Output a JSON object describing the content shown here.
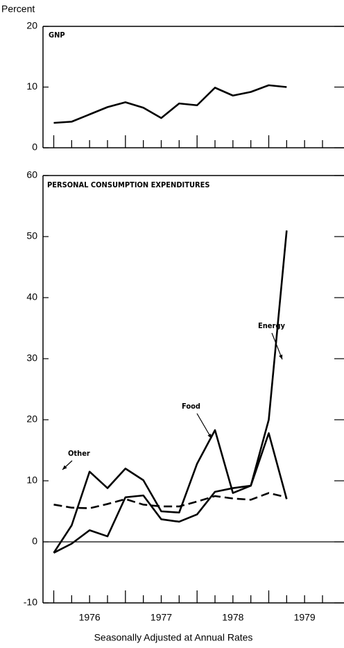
{
  "chart_data": [
    {
      "type": "line",
      "ylabel": "Percent",
      "annotations": [
        {
          "text": "GNP"
        }
      ],
      "x": [
        1976.0,
        1976.25,
        1976.5,
        1976.75,
        1977.0,
        1977.25,
        1977.5,
        1977.75,
        1978.0,
        1978.25,
        1978.5,
        1978.75,
        1979.0,
        1979.25
      ],
      "series": [
        {
          "name": "GNP",
          "color": "#000000",
          "dash": false,
          "values": [
            4.1,
            4.3,
            5.5,
            6.7,
            7.5,
            6.6,
            4.9,
            7.3,
            7.0,
            9.9,
            8.6,
            9.2,
            10.3,
            10.0
          ]
        }
      ],
      "xlim": [
        1975.85,
        1980.05
      ],
      "ylim": [
        0,
        20
      ],
      "yticks": [
        0,
        10,
        20
      ],
      "xminorticks": [
        1976.0,
        1976.25,
        1976.5,
        1976.75,
        1977.0,
        1977.25,
        1977.5,
        1977.75,
        1978.0,
        1978.25,
        1978.5,
        1978.75,
        1979.0,
        1979.25,
        1979.5,
        1979.75
      ],
      "right_ticks": true
    },
    {
      "type": "line",
      "xlabel": "Seasonally Adjusted at Annual Rates",
      "annotations": [
        {
          "text": "PERSONAL CONSUMPTION EXPENDITURES"
        },
        {
          "text": "Energy"
        },
        {
          "text": "Food"
        },
        {
          "text": "Other"
        }
      ],
      "x": [
        1976.0,
        1976.25,
        1976.5,
        1976.75,
        1977.0,
        1977.25,
        1977.5,
        1977.75,
        1978.0,
        1978.25,
        1978.5,
        1978.75,
        1979.0,
        1979.25
      ],
      "series": [
        {
          "name": "Food",
          "color": "#000000",
          "dash": false,
          "values": [
            -1.8,
            2.7,
            11.5,
            8.8,
            12.0,
            10.1,
            5.0,
            4.8,
            12.8,
            18.3,
            8.0,
            9.2,
            17.8,
            7.0
          ]
        },
        {
          "name": "Energy",
          "color": "#000000",
          "dash": false,
          "values": [
            -1.8,
            -0.3,
            1.9,
            0.9,
            7.3,
            7.6,
            3.7,
            3.3,
            4.5,
            8.2,
            8.8,
            9.2,
            20.0,
            51.0
          ]
        },
        {
          "name": "Other",
          "color": "#000000",
          "dash": true,
          "values": [
            6.1,
            5.6,
            5.5,
            6.2,
            7.0,
            6.1,
            5.8,
            5.8,
            6.6,
            7.5,
            7.1,
            6.9,
            8.0,
            7.3
          ]
        }
      ],
      "xlim": [
        1975.85,
        1980.05
      ],
      "ylim": [
        -10,
        60
      ],
      "yticks": [
        -10,
        0,
        10,
        20,
        30,
        40,
        50,
        60
      ],
      "xticks": [
        {
          "value": 1976.5,
          "label": "1976"
        },
        {
          "value": 1977.5,
          "label": "1977"
        },
        {
          "value": 1978.5,
          "label": "1978"
        },
        {
          "value": 1979.5,
          "label": "1979"
        }
      ],
      "xminorticks": [
        1976.0,
        1976.25,
        1976.5,
        1976.75,
        1977.0,
        1977.25,
        1977.5,
        1977.75,
        1978.0,
        1978.25,
        1978.5,
        1978.75,
        1979.0,
        1979.25,
        1979.5,
        1979.75
      ],
      "right_ticks": true,
      "zero_line": true
    }
  ]
}
